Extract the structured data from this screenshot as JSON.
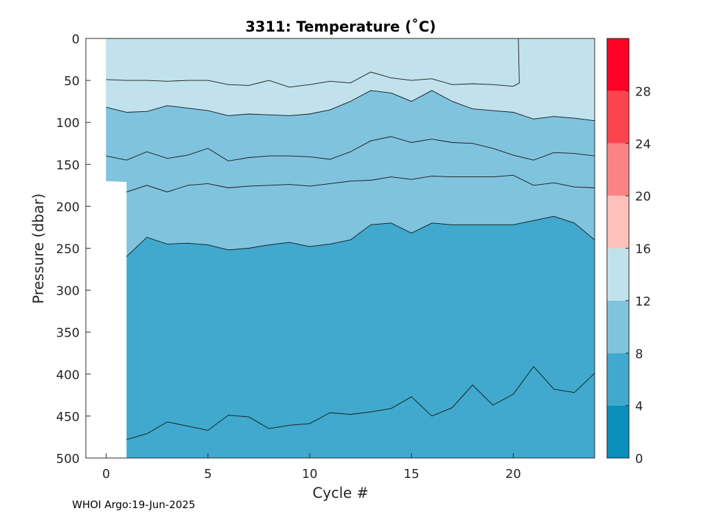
{
  "chart_data": {
    "type": "contour",
    "title": "3311:  Temperature (˚C)",
    "xlabel": "Cycle #",
    "ylabel": "Pressure (dbar)",
    "xlim": [
      -1,
      24
    ],
    "ylim": [
      500,
      0
    ],
    "x_ticks": [
      "0",
      "5",
      "10",
      "15",
      "20"
    ],
    "y_ticks": [
      "0",
      "50",
      "100",
      "150",
      "200",
      "250",
      "300",
      "350",
      "400",
      "450",
      "500"
    ],
    "colorbar": {
      "range": [
        0,
        32
      ],
      "ticks": [
        "0",
        "4",
        "8",
        "12",
        "16",
        "20",
        "24",
        "28"
      ],
      "levels": [
        {
          "min": 0,
          "max": 4,
          "color": "#0a8fba"
        },
        {
          "min": 4,
          "max": 8,
          "color": "#40a9cd"
        },
        {
          "min": 8,
          "max": 12,
          "color": "#80c3de"
        },
        {
          "min": 12,
          "max": 16,
          "color": "#c1e2ed"
        },
        {
          "min": 16,
          "max": 20,
          "color": "#fec0bb"
        },
        {
          "min": 20,
          "max": 24,
          "color": "#fc8385"
        },
        {
          "min": 24,
          "max": 28,
          "color": "#fc444f"
        },
        {
          "min": 28,
          "max": 32,
          "color": "#fd0224"
        }
      ]
    },
    "background_bands": [
      {
        "color": "#c1e2ed",
        "top": "surface",
        "bottom": "iso_12"
      },
      {
        "color": "#80c3de",
        "top": "iso_12",
        "bottom": "iso_8"
      },
      {
        "color": "#40a9cd",
        "top": "iso_8",
        "bottom": "bottom"
      }
    ],
    "no_data_region": {
      "x_end": 1,
      "profile": [
        [
          0,
          170
        ],
        [
          1,
          171
        ]
      ]
    },
    "contour_lines": [
      {
        "name": "iso_14",
        "points": [
          [
            0,
            49
          ],
          [
            1,
            50
          ],
          [
            2,
            50
          ],
          [
            3,
            51
          ],
          [
            4,
            50
          ],
          [
            5,
            50
          ],
          [
            6,
            55
          ],
          [
            7,
            56
          ],
          [
            8,
            50
          ],
          [
            9,
            58
          ],
          [
            10,
            55
          ],
          [
            11,
            51
          ],
          [
            12,
            53
          ],
          [
            13,
            40
          ],
          [
            14,
            47
          ],
          [
            15,
            50
          ],
          [
            16,
            48
          ],
          [
            17,
            55
          ],
          [
            18,
            54
          ],
          [
            19,
            55
          ],
          [
            20,
            57
          ],
          [
            20.3,
            53
          ],
          [
            20.25,
            0
          ]
        ]
      },
      {
        "name": "iso_12",
        "points": [
          [
            0,
            82
          ],
          [
            1,
            88
          ],
          [
            2,
            87
          ],
          [
            3,
            80
          ],
          [
            4,
            83
          ],
          [
            5,
            86
          ],
          [
            6,
            92
          ],
          [
            7,
            90
          ],
          [
            8,
            91
          ],
          [
            9,
            92
          ],
          [
            10,
            90
          ],
          [
            11,
            85
          ],
          [
            12,
            75
          ],
          [
            13,
            62
          ],
          [
            14,
            65
          ],
          [
            15,
            75
          ],
          [
            16,
            62
          ],
          [
            17,
            75
          ],
          [
            18,
            84
          ],
          [
            19,
            86
          ],
          [
            20,
            88
          ],
          [
            21,
            96
          ],
          [
            22,
            93
          ],
          [
            23,
            95
          ],
          [
            24,
            98
          ]
        ]
      },
      {
        "name": "iso_10",
        "points": [
          [
            0,
            140
          ],
          [
            1,
            145
          ],
          [
            2,
            135
          ],
          [
            3,
            143
          ],
          [
            4,
            139
          ],
          [
            5,
            131
          ],
          [
            6,
            146
          ],
          [
            7,
            142
          ],
          [
            8,
            140
          ],
          [
            9,
            140
          ],
          [
            10,
            141
          ],
          [
            11,
            144
          ],
          [
            12,
            135
          ],
          [
            13,
            122
          ],
          [
            14,
            117
          ],
          [
            15,
            124
          ],
          [
            16,
            120
          ],
          [
            17,
            124
          ],
          [
            18,
            125
          ],
          [
            19,
            131
          ],
          [
            20,
            139
          ],
          [
            21,
            145
          ],
          [
            22,
            136
          ],
          [
            23,
            137
          ],
          [
            24,
            140
          ]
        ]
      },
      {
        "name": "iso_9",
        "points": [
          [
            1,
            183
          ],
          [
            2,
            175
          ],
          [
            3,
            183
          ],
          [
            4,
            175
          ],
          [
            5,
            173
          ],
          [
            6,
            178
          ],
          [
            7,
            176
          ],
          [
            8,
            175
          ],
          [
            9,
            174
          ],
          [
            10,
            176
          ],
          [
            11,
            173
          ],
          [
            12,
            170
          ],
          [
            13,
            169
          ],
          [
            14,
            165
          ],
          [
            15,
            168
          ],
          [
            16,
            164
          ],
          [
            17,
            165
          ],
          [
            18,
            165
          ],
          [
            19,
            165
          ],
          [
            20,
            163
          ],
          [
            21,
            175
          ],
          [
            22,
            172
          ],
          [
            23,
            177
          ],
          [
            24,
            178
          ]
        ]
      },
      {
        "name": "iso_8",
        "points": [
          [
            1,
            260
          ],
          [
            2,
            237
          ],
          [
            3,
            245
          ],
          [
            4,
            244
          ],
          [
            5,
            246
          ],
          [
            6,
            252
          ],
          [
            7,
            250
          ],
          [
            8,
            246
          ],
          [
            9,
            243
          ],
          [
            10,
            248
          ],
          [
            11,
            245
          ],
          [
            12,
            240
          ],
          [
            13,
            222
          ],
          [
            14,
            220
          ],
          [
            15,
            232
          ],
          [
            16,
            220
          ],
          [
            17,
            222
          ],
          [
            18,
            222
          ],
          [
            19,
            222
          ],
          [
            20,
            222
          ],
          [
            21,
            217
          ],
          [
            22,
            212
          ],
          [
            23,
            220
          ],
          [
            24,
            240
          ]
        ]
      },
      {
        "name": "iso_6",
        "points": [
          [
            1,
            478
          ],
          [
            2,
            471
          ],
          [
            3,
            457
          ],
          [
            4,
            462
          ],
          [
            5,
            467
          ],
          [
            6,
            449
          ],
          [
            7,
            451
          ],
          [
            8,
            465
          ],
          [
            9,
            461
          ],
          [
            10,
            459
          ],
          [
            11,
            446
          ],
          [
            12,
            448
          ],
          [
            13,
            445
          ],
          [
            14,
            441
          ],
          [
            15,
            427
          ],
          [
            16,
            450
          ],
          [
            17,
            440
          ],
          [
            18,
            413
          ],
          [
            19,
            437
          ],
          [
            20,
            424
          ],
          [
            21,
            391
          ],
          [
            22,
            418
          ],
          [
            23,
            422
          ],
          [
            24,
            399
          ]
        ]
      }
    ]
  },
  "footer": {
    "credit": "WHOI Argo:19-Jun-2025"
  }
}
